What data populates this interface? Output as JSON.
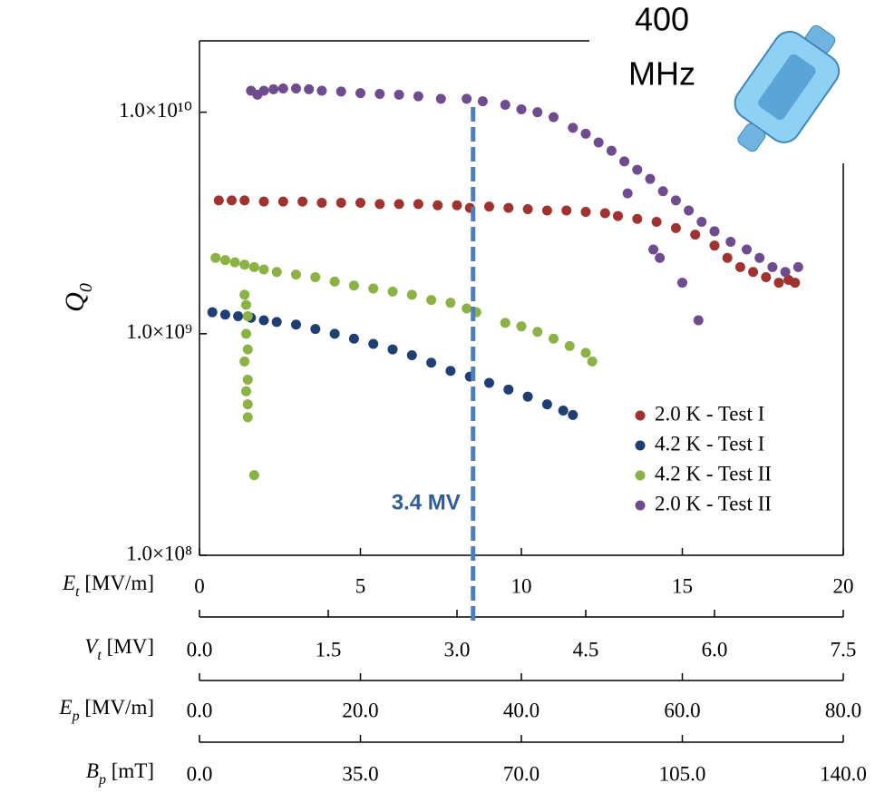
{
  "chart_data": {
    "type": "scatter",
    "title_lines": [
      "400",
      "MHz"
    ],
    "y_label": {
      "symbol": "Q",
      "sub": "0"
    },
    "log_y": true,
    "ylim": [
      100000000.0,
      21000000000.0
    ],
    "yticks": [
      {
        "value": 100000000.0,
        "label": "1.0×10⁸"
      },
      {
        "value": 1000000000.0,
        "label": "1.0×10⁹"
      },
      {
        "value": 10000000000.0,
        "label": "1.0×10¹⁰"
      }
    ],
    "x_axes": [
      {
        "label": {
          "symbol": "E",
          "sub": "t",
          "unit": " [MV/m]"
        },
        "xlim": [
          0,
          20
        ],
        "xticks": [
          0,
          5,
          10,
          15,
          20
        ]
      },
      {
        "label": {
          "symbol": "V",
          "sub": "t",
          "unit": " [MV]"
        },
        "xlim": [
          0,
          7.5
        ],
        "xticks": [
          {
            "value": 0,
            "label": "0.0"
          },
          1.5,
          {
            "value": 3,
            "label": "3.0"
          },
          4.5,
          {
            "value": 6,
            "label": "6.0"
          },
          7.5
        ]
      },
      {
        "label": {
          "symbol": "E",
          "sub": "p",
          "unit": " [MV/m]"
        },
        "xlim": [
          0,
          80
        ],
        "xticks": [
          {
            "value": 0,
            "label": "0.0"
          },
          {
            "value": 20,
            "label": "20.0"
          },
          {
            "value": 40,
            "label": "40.0"
          },
          {
            "value": 60,
            "label": "60.0"
          },
          {
            "value": 80,
            "label": "80.0"
          }
        ]
      },
      {
        "label": {
          "symbol": "B",
          "sub": "p",
          "unit": " [mT]"
        },
        "xlim": [
          0,
          140
        ],
        "xticks": [
          {
            "value": 0,
            "label": "0.0"
          },
          {
            "value": 35,
            "label": "35.0"
          },
          {
            "value": 70,
            "label": "70.0"
          },
          {
            "value": 105,
            "label": "105.0"
          },
          {
            "value": 140,
            "label": "140.0"
          }
        ]
      }
    ],
    "annotation": {
      "text": "3.4 MV",
      "x": 8.5,
      "color": "#4a7fc0"
    },
    "legend": "lower right",
    "series": [
      {
        "name": "2.0 K - Test I",
        "color": "#a0332f",
        "x": [
          0.6,
          1.0,
          1.4,
          2.0,
          2.6,
          3.2,
          3.8,
          4.4,
          5.0,
          5.6,
          6.2,
          6.8,
          7.4,
          8.0,
          8.4,
          9.0,
          9.6,
          10.2,
          10.8,
          11.4,
          12.0,
          12.6,
          13.0,
          13.6,
          14.2,
          14.8,
          15.4,
          16.0,
          16.4,
          16.8,
          17.2,
          17.6,
          18.0,
          18.3,
          18.5
        ],
        "values": [
          4000000000.0,
          4000000000.0,
          4000000000.0,
          3950000000.0,
          3950000000.0,
          3950000000.0,
          3900000000.0,
          3900000000.0,
          3900000000.0,
          3850000000.0,
          3850000000.0,
          3850000000.0,
          3800000000.0,
          3800000000.0,
          3700000000.0,
          3750000000.0,
          3700000000.0,
          3650000000.0,
          3600000000.0,
          3600000000.0,
          3550000000.0,
          3500000000.0,
          3400000000.0,
          3300000000.0,
          3200000000.0,
          3000000000.0,
          2800000000.0,
          2500000000.0,
          2200000000.0,
          2000000000.0,
          1900000000.0,
          1800000000.0,
          1700000000.0,
          1750000000.0,
          1700000000.0
        ]
      },
      {
        "name": "4.2 K - Test I",
        "color": "#1f3f73",
        "x": [
          0.4,
          0.8,
          1.2,
          1.6,
          2.0,
          2.4,
          3.0,
          3.6,
          4.2,
          4.8,
          5.4,
          6.0,
          6.6,
          7.2,
          7.8,
          8.4,
          9.0,
          9.6,
          10.2,
          10.8,
          11.3,
          11.6
        ],
        "values": [
          1250000000.0,
          1220000000.0,
          1200000000.0,
          1180000000.0,
          1150000000.0,
          1130000000.0,
          1100000000.0,
          1050000000.0,
          1000000000.0,
          950000000.0,
          900000000.0,
          850000000.0,
          800000000.0,
          740000000.0,
          680000000.0,
          640000000.0,
          600000000.0,
          560000000.0,
          520000000.0,
          480000000.0,
          450000000.0,
          430000000.0
        ]
      },
      {
        "name": "4.2 K - Test II",
        "color": "#8bb244",
        "x": [
          0.5,
          0.8,
          1.1,
          1.4,
          1.7,
          2.0,
          2.4,
          3.0,
          3.6,
          4.2,
          4.8,
          5.4,
          6.0,
          6.6,
          7.2,
          7.8,
          8.3,
          8.6,
          9.5,
          10.0,
          10.5,
          11.0,
          11.5,
          12.0,
          12.2,
          1.4,
          1.45,
          1.5,
          1.45,
          1.5,
          1.4,
          1.5,
          1.45,
          1.5,
          1.5,
          1.7
        ],
        "values": [
          2200000000.0,
          2150000000.0,
          2100000000.0,
          2050000000.0,
          2000000000.0,
          1950000000.0,
          1900000000.0,
          1850000000.0,
          1800000000.0,
          1720000000.0,
          1650000000.0,
          1600000000.0,
          1550000000.0,
          1500000000.0,
          1420000000.0,
          1380000000.0,
          1300000000.0,
          1250000000.0,
          1120000000.0,
          1080000000.0,
          1020000000.0,
          950000000.0,
          880000000.0,
          820000000.0,
          750000000.0,
          1500000000.0,
          1350000000.0,
          1200000000.0,
          1000000000.0,
          850000000.0,
          750000000.0,
          620000000.0,
          550000000.0,
          480000000.0,
          420000000.0,
          230000000.0
        ]
      },
      {
        "name": "2.0 K - Test II",
        "color": "#6e4c8f",
        "x": [
          1.6,
          1.8,
          2.0,
          2.3,
          2.6,
          3.0,
          3.4,
          3.8,
          4.4,
          5.0,
          5.6,
          6.2,
          6.8,
          7.5,
          8.3,
          8.8,
          9.5,
          10.0,
          10.5,
          11.0,
          11.6,
          12.0,
          12.4,
          12.8,
          13.2,
          13.6,
          14.0,
          14.4,
          14.8,
          15.2,
          15.6,
          16.0,
          16.5,
          17.0,
          17.4,
          17.8,
          18.2,
          18.6,
          13.3,
          14.1,
          15.0,
          15.5,
          14.3
        ],
        "values": [
          12500000000.0,
          12000000000.0,
          12500000000.0,
          12700000000.0,
          12800000000.0,
          12800000000.0,
          12700000000.0,
          12500000000.0,
          12400000000.0,
          12200000000.0,
          12100000000.0,
          12000000000.0,
          11800000000.0,
          11500000000.0,
          11500000000.0,
          11200000000.0,
          10800000000.0,
          10300000000.0,
          10000000000.0,
          9500000000.0,
          8500000000.0,
          8000000000.0,
          7300000000.0,
          6700000000.0,
          6000000000.0,
          5500000000.0,
          5000000000.0,
          4400000000.0,
          4000000000.0,
          3600000000.0,
          3200000000.0,
          2900000000.0,
          2600000000.0,
          2400000000.0,
          2200000000.0,
          2000000000.0,
          1900000000.0,
          2000000000.0,
          4300000000.0,
          2400000000.0,
          1700000000.0,
          1150000000.0,
          2200000000.0
        ]
      }
    ]
  }
}
